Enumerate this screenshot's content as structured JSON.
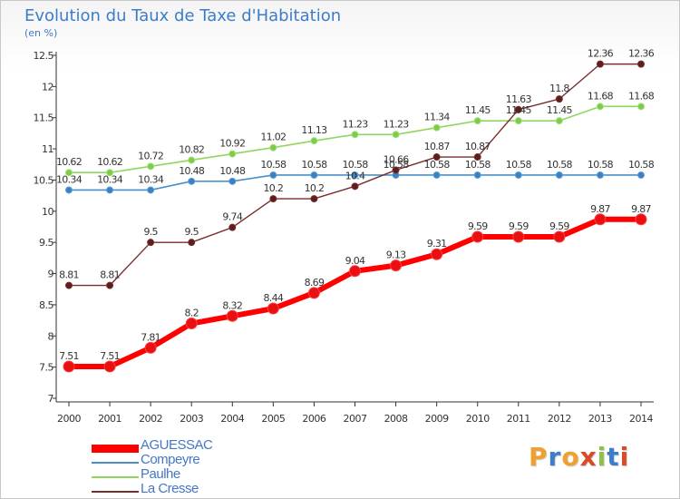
{
  "chart_data": {
    "type": "line",
    "title": "Evolution du Taux de Taxe d'Habitation",
    "ylabel": "(en %)",
    "xlabel": "",
    "x": [
      "2000",
      "2001",
      "2002",
      "2003",
      "2004",
      "2005",
      "2006",
      "2007",
      "2008",
      "2009",
      "2010",
      "2011",
      "2012",
      "2013",
      "2014"
    ],
    "ylim": [
      7,
      12.5
    ],
    "yticks": [
      7,
      7.5,
      8,
      8.5,
      9,
      9.5,
      10,
      10.5,
      11,
      11.5,
      12,
      12.5
    ],
    "ytick_labels": [
      "7",
      "7.5",
      "8",
      "8.5",
      "9",
      "9.5",
      "10",
      "10.5",
      "11",
      "11.5",
      "12",
      "12.5"
    ],
    "grid": false,
    "legend_position": "bottom-left",
    "series": [
      {
        "name": "AGUESSAC",
        "color": "#ff0000",
        "values": [
          7.51,
          7.51,
          7.81,
          8.2,
          8.32,
          8.44,
          8.69,
          9.04,
          9.13,
          9.31,
          9.59,
          9.59,
          9.59,
          9.87,
          9.87
        ],
        "labels": [
          "7.51",
          "7.51",
          "7.81",
          "8.2",
          "8.32",
          "8.44",
          "8.69",
          "9.04",
          "9.13",
          "9.31",
          "9.59",
          "9.59",
          "9.59",
          "9.87",
          "9.87"
        ]
      },
      {
        "name": "Compeyre",
        "color": "#4a90c8",
        "values": [
          10.34,
          10.34,
          10.34,
          10.48,
          10.48,
          10.58,
          10.58,
          10.58,
          10.58,
          10.58,
          10.58,
          10.58,
          10.58,
          10.58,
          10.58
        ],
        "labels": [
          "10.34",
          "10.34",
          "10.34",
          "10.48",
          "10.48",
          "10.58",
          "10.58",
          "10.58",
          "10.58",
          "10.58",
          "10.58",
          "10.58",
          "10.58",
          "10.58",
          "10.58"
        ]
      },
      {
        "name": "Paulhe",
        "color": "#8fd660",
        "values": [
          10.62,
          10.62,
          10.72,
          10.82,
          10.92,
          11.02,
          11.13,
          11.23,
          11.23,
          11.34,
          11.45,
          11.45,
          11.45,
          11.68,
          11.68
        ],
        "labels": [
          "10.62",
          "10.62",
          "10.72",
          "10.82",
          "10.92",
          "11.02",
          "11.13",
          "11.23",
          "11.23",
          "11.34",
          "11.45",
          "11.45",
          "11.45",
          "11.68",
          "11.68"
        ]
      },
      {
        "name": "La Cresse",
        "color": "#7a2d2d",
        "values": [
          8.81,
          8.81,
          9.5,
          9.5,
          9.74,
          10.2,
          10.2,
          10.4,
          10.66,
          10.87,
          10.87,
          11.63,
          11.8,
          12.36,
          12.36
        ],
        "labels": [
          "8.81",
          "8.81",
          "9.5",
          "9.5",
          "9.74",
          "10.2",
          "10.2",
          "10.4",
          "10.66",
          "10.87",
          "10.87",
          "11.63",
          "11.8",
          "12.36",
          "12.36"
        ]
      }
    ]
  },
  "brand": {
    "name": "Proxiti",
    "letters": [
      "P",
      "r",
      "o",
      "x",
      "i",
      "t",
      "i"
    ],
    "colors": [
      "#f0a030",
      "#3d7cc9",
      "#f0a030",
      "#d94a2a",
      "#8bc34a",
      "#3d7cc9",
      "#d94a2a"
    ]
  }
}
